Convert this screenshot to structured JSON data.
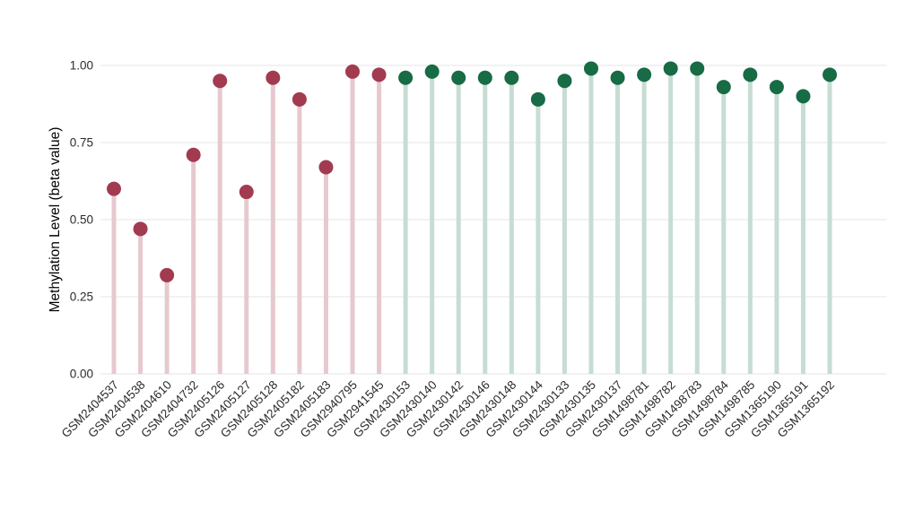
{
  "chart_data": {
    "type": "lollipop",
    "title": "",
    "xlabel": "",
    "ylabel": "Methylation Level (beta value)",
    "ylim": [
      0,
      1.05
    ],
    "yticks": [
      0,
      0.25,
      0.5,
      0.75,
      1.0
    ],
    "ytick_labels": [
      "0.00",
      "0.25",
      "0.50",
      "0.75",
      "1.00"
    ],
    "grid": true,
    "legend": "none",
    "groups": [
      {
        "name": "red-group",
        "dot_color": "#A23B50",
        "stem_color": "#E6C9CF"
      },
      {
        "name": "green-group",
        "dot_color": "#176B45",
        "stem_color": "#C6DDD3"
      }
    ],
    "points": [
      {
        "label": "GSM2404537",
        "value": 0.6,
        "group": 0
      },
      {
        "label": "GSM2404538",
        "value": 0.47,
        "group": 0
      },
      {
        "label": "GSM2404610",
        "value": 0.32,
        "group": 0
      },
      {
        "label": "GSM2404732",
        "value": 0.71,
        "group": 0
      },
      {
        "label": "GSM2405126",
        "value": 0.95,
        "group": 0
      },
      {
        "label": "GSM2405127",
        "value": 0.59,
        "group": 0
      },
      {
        "label": "GSM2405128",
        "value": 0.96,
        "group": 0
      },
      {
        "label": "GSM2405182",
        "value": 0.89,
        "group": 0
      },
      {
        "label": "GSM2405183",
        "value": 0.67,
        "group": 0
      },
      {
        "label": "GSM2940795",
        "value": 0.98,
        "group": 0
      },
      {
        "label": "GSM2941545",
        "value": 0.97,
        "group": 0
      },
      {
        "label": "GSM2430153",
        "value": 0.96,
        "group": 1
      },
      {
        "label": "GSM2430140",
        "value": 0.98,
        "group": 1
      },
      {
        "label": "GSM2430142",
        "value": 0.96,
        "group": 1
      },
      {
        "label": "GSM2430146",
        "value": 0.96,
        "group": 1
      },
      {
        "label": "GSM2430148",
        "value": 0.96,
        "group": 1
      },
      {
        "label": "GSM2430144",
        "value": 0.89,
        "group": 1
      },
      {
        "label": "GSM2430133",
        "value": 0.95,
        "group": 1
      },
      {
        "label": "GSM2430135",
        "value": 0.99,
        "group": 1
      },
      {
        "label": "GSM2430137",
        "value": 0.96,
        "group": 1
      },
      {
        "label": "GSM1498781",
        "value": 0.97,
        "group": 1
      },
      {
        "label": "GSM1498782",
        "value": 0.99,
        "group": 1
      },
      {
        "label": "GSM1498783",
        "value": 0.99,
        "group": 1
      },
      {
        "label": "GSM1498784",
        "value": 0.93,
        "group": 1
      },
      {
        "label": "GSM1498785",
        "value": 0.97,
        "group": 1
      },
      {
        "label": "GSM1365190",
        "value": 0.93,
        "group": 1
      },
      {
        "label": "GSM1365191",
        "value": 0.9,
        "group": 1
      },
      {
        "label": "GSM1365192",
        "value": 0.97,
        "group": 1
      }
    ],
    "style": {
      "grid_color": "#E9E9E9",
      "tick_label_color": "#2b2b2b",
      "axis_label_color": "#000000",
      "background": "#ffffff"
    }
  }
}
